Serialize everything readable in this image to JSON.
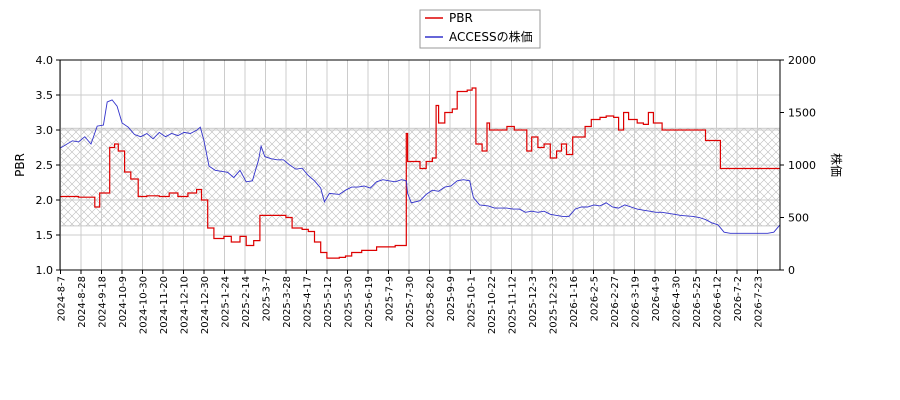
{
  "chart_data": {
    "type": "line",
    "legend": {
      "placement": "top-center",
      "entries": [
        {
          "label": "PBR",
          "color": "#dd0000"
        },
        {
          "label": "ACCESSの株価",
          "color": "#3333cc"
        }
      ]
    },
    "ylabel_left": "PBR",
    "ylabel_right": "株価",
    "ylim_left": [
      1.0,
      4.0
    ],
    "ylim_right": [
      0,
      2000
    ],
    "yticks_left": [
      "1.0",
      "1.5",
      "2.0",
      "2.5",
      "3.0",
      "3.5",
      "4.0"
    ],
    "yticks_right": [
      "0",
      "500",
      "1000",
      "1500",
      "2000"
    ],
    "grid": true,
    "band_right": [
      1350,
      420
    ],
    "x_dates": [
      "2024-8-7",
      "2024-8-28",
      "2024-9-18",
      "2024-10-9",
      "2024-10-30",
      "2024-11-20",
      "2024-12-10",
      "2024-12-30",
      "2025-1-24",
      "2025-2-14",
      "2025-3-7",
      "2025-3-28",
      "2025-4-17",
      "2025-5-12",
      "2025-5-30",
      "2025-6-19",
      "2025-7-9",
      "2025-7-30",
      "2025-8-20",
      "2025-9-9",
      "2025-10-1",
      "2025-10-22",
      "2025-11-12",
      "2025-12-3",
      "2025-12-23",
      "2026-1-16",
      "2026-2-5",
      "2026-2-27",
      "2026-3-19",
      "2026-4-9",
      "2026-4-30",
      "2026-5-25",
      "2026-6-12",
      "2026-7-2",
      "2026-7-23"
    ],
    "series": [
      {
        "name": "PBR",
        "axis": "left",
        "color": "#dd0000",
        "points": [
          [
            0,
            2.05
          ],
          [
            1.5,
            2.04
          ],
          [
            2.8,
            1.9
          ],
          [
            3.2,
            2.1
          ],
          [
            3.8,
            2.1
          ],
          [
            4.0,
            2.75
          ],
          [
            4.4,
            2.8
          ],
          [
            4.7,
            2.7
          ],
          [
            5.2,
            2.4
          ],
          [
            5.7,
            2.3
          ],
          [
            6.3,
            2.05
          ],
          [
            7.0,
            2.06
          ],
          [
            8.0,
            2.05
          ],
          [
            8.8,
            2.1
          ],
          [
            9.5,
            2.05
          ],
          [
            10.3,
            2.1
          ],
          [
            11.0,
            2.15
          ],
          [
            11.4,
            2.0
          ],
          [
            11.9,
            1.6
          ],
          [
            12.4,
            1.45
          ],
          [
            13.2,
            1.48
          ],
          [
            13.8,
            1.4
          ],
          [
            14.5,
            1.48
          ],
          [
            15.0,
            1.35
          ],
          [
            15.6,
            1.42
          ],
          [
            16.1,
            1.78
          ],
          [
            17.2,
            1.78
          ],
          [
            18.2,
            1.75
          ],
          [
            18.7,
            1.6
          ],
          [
            19.5,
            1.58
          ],
          [
            20.0,
            1.55
          ],
          [
            20.5,
            1.4
          ],
          [
            21.0,
            1.25
          ],
          [
            21.5,
            1.17
          ],
          [
            22.5,
            1.18
          ],
          [
            23.0,
            1.2
          ],
          [
            23.5,
            1.25
          ],
          [
            24.3,
            1.28
          ],
          [
            25.0,
            1.28
          ],
          [
            25.5,
            1.33
          ],
          [
            26.5,
            1.33
          ],
          [
            27.0,
            1.35
          ],
          [
            27.8,
            1.35
          ],
          [
            27.9,
            2.95
          ],
          [
            28.0,
            2.55
          ],
          [
            28.6,
            2.55
          ],
          [
            29.0,
            2.45
          ],
          [
            29.5,
            2.55
          ],
          [
            30.0,
            2.6
          ],
          [
            30.3,
            3.35
          ],
          [
            30.5,
            3.1
          ],
          [
            31.0,
            3.25
          ],
          [
            31.6,
            3.3
          ],
          [
            32.0,
            3.55
          ],
          [
            32.8,
            3.57
          ],
          [
            33.2,
            3.6
          ],
          [
            33.5,
            2.8
          ],
          [
            34.0,
            2.7
          ],
          [
            34.4,
            3.1
          ],
          [
            34.6,
            3.0
          ],
          [
            35.5,
            3.0
          ],
          [
            36.0,
            3.05
          ],
          [
            36.6,
            3.0
          ],
          [
            37.2,
            3.0
          ],
          [
            37.6,
            2.7
          ],
          [
            38.0,
            2.9
          ],
          [
            38.5,
            2.75
          ],
          [
            39.0,
            2.8
          ],
          [
            39.5,
            2.6
          ],
          [
            40.0,
            2.7
          ],
          [
            40.4,
            2.8
          ],
          [
            40.8,
            2.65
          ],
          [
            41.3,
            2.9
          ],
          [
            41.8,
            2.9
          ],
          [
            42.3,
            3.05
          ],
          [
            42.8,
            3.15
          ],
          [
            43.5,
            3.18
          ],
          [
            44.0,
            3.2
          ],
          [
            44.6,
            3.18
          ],
          [
            45.0,
            3.0
          ],
          [
            45.4,
            3.25
          ],
          [
            45.8,
            3.15
          ],
          [
            46.5,
            3.1
          ],
          [
            47.0,
            3.08
          ],
          [
            47.4,
            3.25
          ],
          [
            47.8,
            3.1
          ],
          [
            48.5,
            3.0
          ],
          [
            50.0,
            3.0
          ],
          [
            51.5,
            3.0
          ],
          [
            52.0,
            2.85
          ],
          [
            53.0,
            2.85
          ],
          [
            53.2,
            2.45
          ],
          [
            55.0,
            2.45
          ],
          [
            57.0,
            2.45
          ],
          [
            58.0,
            2.45
          ]
        ]
      },
      {
        "name": "ACCESSの株価",
        "axis": "right",
        "color": "#3333cc",
        "points": [
          [
            0,
            1160
          ],
          [
            1.0,
            1230
          ],
          [
            1.5,
            1220
          ],
          [
            2.0,
            1270
          ],
          [
            2.5,
            1200
          ],
          [
            3.0,
            1370
          ],
          [
            3.5,
            1380
          ],
          [
            3.8,
            1600
          ],
          [
            4.2,
            1620
          ],
          [
            4.6,
            1560
          ],
          [
            5.0,
            1400
          ],
          [
            5.5,
            1360
          ],
          [
            6.0,
            1290
          ],
          [
            6.5,
            1270
          ],
          [
            7.0,
            1300
          ],
          [
            7.5,
            1250
          ],
          [
            8.0,
            1310
          ],
          [
            8.5,
            1270
          ],
          [
            9.0,
            1300
          ],
          [
            9.5,
            1280
          ],
          [
            10.0,
            1310
          ],
          [
            10.5,
            1300
          ],
          [
            11.0,
            1330
          ],
          [
            11.3,
            1360
          ],
          [
            11.6,
            1230
          ],
          [
            12.0,
            990
          ],
          [
            12.5,
            950
          ],
          [
            13.0,
            940
          ],
          [
            13.5,
            930
          ],
          [
            14.0,
            880
          ],
          [
            14.5,
            950
          ],
          [
            15.0,
            840
          ],
          [
            15.5,
            850
          ],
          [
            16.0,
            1050
          ],
          [
            16.2,
            1180
          ],
          [
            16.5,
            1080
          ],
          [
            17.0,
            1060
          ],
          [
            17.5,
            1050
          ],
          [
            18.0,
            1050
          ],
          [
            18.5,
            1000
          ],
          [
            19.0,
            960
          ],
          [
            19.5,
            970
          ],
          [
            20.0,
            900
          ],
          [
            20.5,
            850
          ],
          [
            21.0,
            780
          ],
          [
            21.3,
            650
          ],
          [
            21.7,
            730
          ],
          [
            22.5,
            720
          ],
          [
            23.0,
            760
          ],
          [
            23.5,
            790
          ],
          [
            24.0,
            790
          ],
          [
            24.5,
            800
          ],
          [
            25.0,
            780
          ],
          [
            25.5,
            840
          ],
          [
            26.0,
            860
          ],
          [
            26.5,
            850
          ],
          [
            27.0,
            840
          ],
          [
            27.5,
            860
          ],
          [
            27.9,
            850
          ],
          [
            28.0,
            730
          ],
          [
            28.3,
            640
          ],
          [
            29.0,
            660
          ],
          [
            29.5,
            720
          ],
          [
            30.0,
            760
          ],
          [
            30.5,
            750
          ],
          [
            31.0,
            790
          ],
          [
            31.5,
            800
          ],
          [
            32.0,
            850
          ],
          [
            32.5,
            860
          ],
          [
            33.0,
            850
          ],
          [
            33.3,
            690
          ],
          [
            33.8,
            620
          ],
          [
            34.5,
            610
          ],
          [
            35.0,
            590
          ],
          [
            36.0,
            590
          ],
          [
            36.5,
            580
          ],
          [
            37.0,
            580
          ],
          [
            37.5,
            550
          ],
          [
            38.0,
            560
          ],
          [
            38.5,
            550
          ],
          [
            39.0,
            560
          ],
          [
            39.5,
            530
          ],
          [
            40.0,
            520
          ],
          [
            40.5,
            510
          ],
          [
            41.0,
            510
          ],
          [
            41.5,
            580
          ],
          [
            42.0,
            600
          ],
          [
            42.5,
            600
          ],
          [
            43.0,
            620
          ],
          [
            43.5,
            610
          ],
          [
            44.0,
            640
          ],
          [
            44.5,
            600
          ],
          [
            45.0,
            590
          ],
          [
            45.5,
            620
          ],
          [
            46.0,
            600
          ],
          [
            46.5,
            580
          ],
          [
            47.0,
            570
          ],
          [
            47.5,
            560
          ],
          [
            48.0,
            550
          ],
          [
            48.5,
            550
          ],
          [
            49.0,
            540
          ],
          [
            49.5,
            530
          ],
          [
            50.0,
            520
          ],
          [
            51.0,
            510
          ],
          [
            51.5,
            500
          ],
          [
            52.0,
            480
          ],
          [
            52.5,
            450
          ],
          [
            53.0,
            430
          ],
          [
            53.5,
            360
          ],
          [
            54.0,
            350
          ],
          [
            55.0,
            350
          ],
          [
            56.0,
            350
          ],
          [
            57.0,
            350
          ],
          [
            57.5,
            360
          ],
          [
            58.0,
            430
          ]
        ]
      }
    ]
  }
}
